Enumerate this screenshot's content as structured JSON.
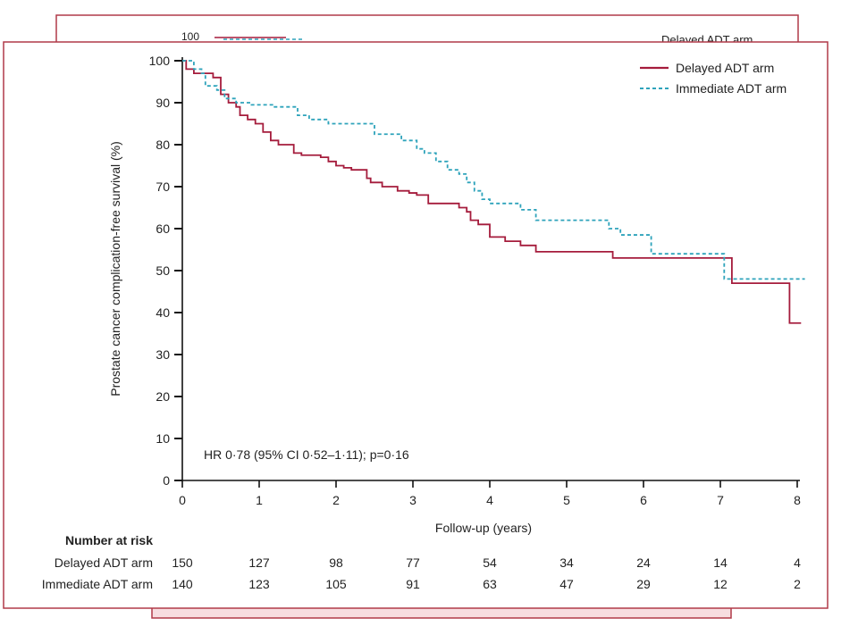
{
  "colors": {
    "frame": "#b03a48",
    "strip": "#f7dde0",
    "delayed": "#a51c3c",
    "immediate": "#2ea3bb",
    "axis": "#111111",
    "text": "#222222"
  },
  "behind_panel": {
    "tick_label": "100",
    "legend_text": "Delayed ADT arm"
  },
  "chart_data": {
    "type": "line",
    "step": true,
    "xlabel": "Follow-up (years)",
    "ylabel": "Prostate cancer complication-free survival (%)",
    "xlim": [
      0,
      8.1
    ],
    "ylim": [
      0,
      100
    ],
    "x_ticks": [
      0,
      1,
      2,
      3,
      4,
      5,
      6,
      7,
      8
    ],
    "y_ticks": [
      0,
      10,
      20,
      30,
      40,
      50,
      60,
      70,
      80,
      90,
      100
    ],
    "x_tick_labels": [
      "0",
      "1",
      "2",
      "3",
      "4",
      "5",
      "6",
      "7",
      "8"
    ],
    "y_tick_labels": [
      "0",
      "10",
      "20",
      "30",
      "40",
      "50",
      "60",
      "70",
      "80",
      "90",
      "100"
    ],
    "legend_position": "top-right",
    "annotation": "HR 0·78 (95% CI 0·52–1·11); p=0·16",
    "series": [
      {
        "name": "Delayed ADT arm",
        "style": "solid",
        "x": [
          0,
          0.05,
          0.15,
          0.4,
          0.5,
          0.6,
          0.7,
          0.75,
          0.85,
          0.95,
          1.05,
          1.15,
          1.25,
          1.45,
          1.55,
          1.8,
          1.9,
          2.0,
          2.1,
          2.2,
          2.4,
          2.45,
          2.6,
          2.8,
          2.95,
          3.05,
          3.2,
          3.6,
          3.7,
          3.75,
          3.85,
          4.0,
          4.2,
          4.4,
          4.6,
          5.0,
          5.6,
          5.8,
          7.0,
          7.15,
          7.85,
          7.9,
          8.05
        ],
        "y": [
          100,
          98,
          97,
          96,
          92,
          90,
          89,
          87,
          86,
          85,
          83,
          81,
          80,
          78,
          77.5,
          77,
          76,
          75,
          74.5,
          74,
          72,
          71,
          70,
          69,
          68.5,
          68,
          66,
          65,
          64,
          62,
          61,
          58,
          57,
          56,
          54.5,
          54.5,
          53,
          53,
          53,
          47,
          47,
          37.5,
          37.5
        ]
      },
      {
        "name": "Immediate ADT arm",
        "style": "dashed",
        "x": [
          0,
          0.15,
          0.25,
          0.3,
          0.45,
          0.55,
          0.7,
          0.9,
          1.2,
          1.5,
          1.65,
          1.9,
          2.1,
          2.5,
          2.85,
          3.05,
          3.15,
          3.3,
          3.45,
          3.6,
          3.7,
          3.8,
          3.9,
          4.0,
          4.2,
          4.4,
          4.6,
          5.0,
          5.55,
          5.7,
          6.05,
          6.1,
          6.35,
          7.0,
          7.05,
          8.1
        ],
        "y": [
          100,
          98,
          97,
          94,
          93,
          91,
          90,
          89.5,
          89,
          87,
          86,
          85,
          85,
          82.5,
          81,
          79,
          78,
          76,
          74,
          73,
          71,
          69,
          67,
          66,
          66,
          64.5,
          62,
          62,
          60,
          58.5,
          58.5,
          54,
          54,
          54,
          48,
          48
        ]
      }
    ]
  },
  "risk_table": {
    "title": "Number at risk",
    "rows": [
      {
        "label": "Delayed ADT arm",
        "values": [
          "150",
          "127",
          "98",
          "77",
          "54",
          "34",
          "24",
          "14",
          "4"
        ]
      },
      {
        "label": "Immediate ADT arm",
        "values": [
          "140",
          "123",
          "105",
          "91",
          "63",
          "47",
          "29",
          "12",
          "2"
        ]
      }
    ]
  }
}
